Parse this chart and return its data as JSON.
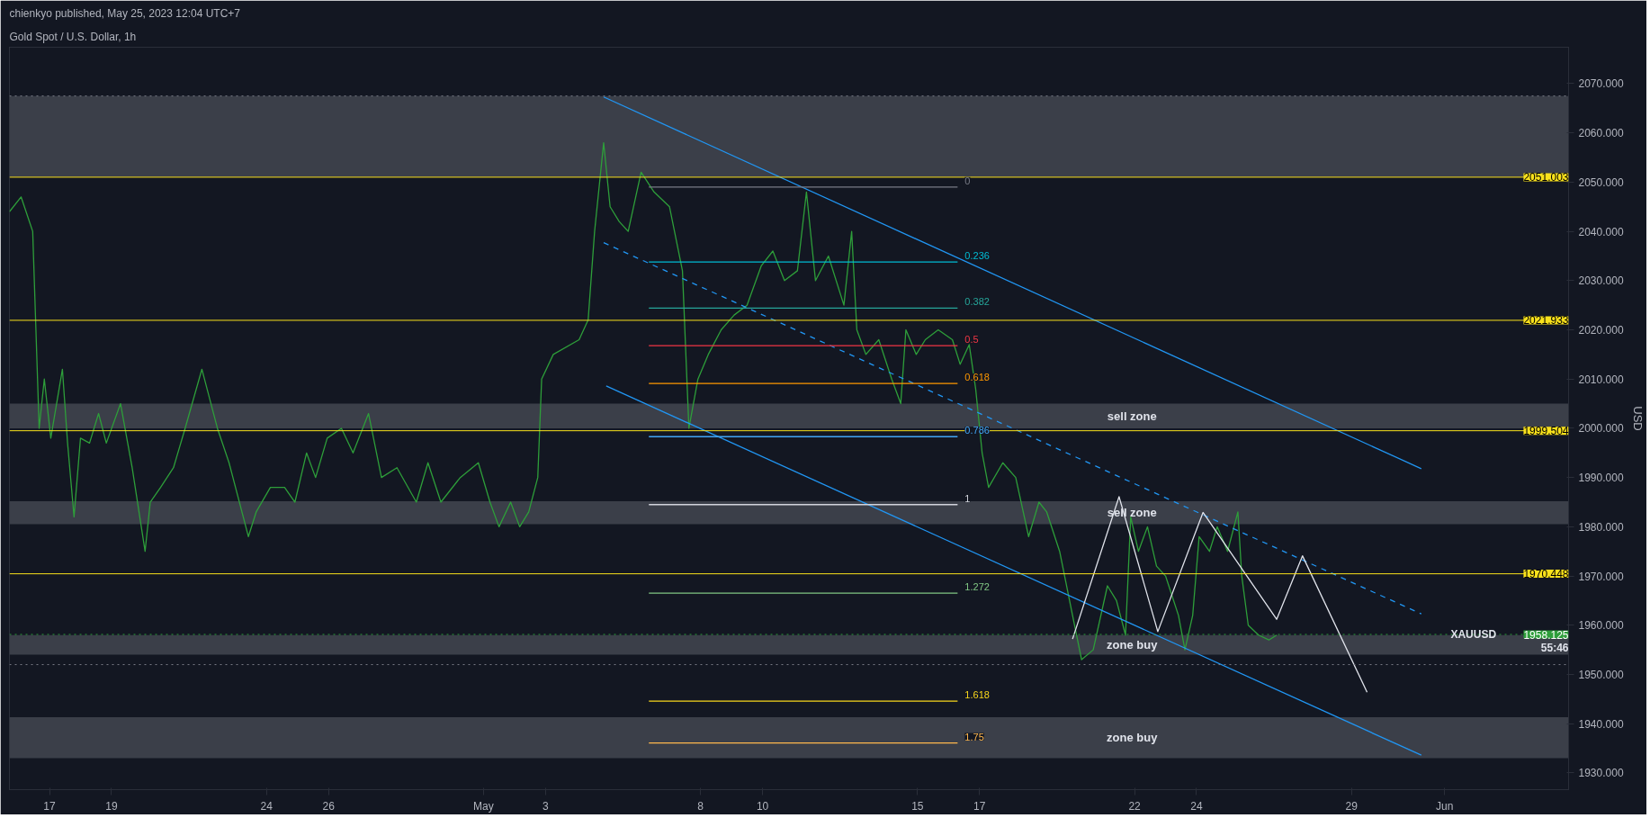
{
  "chart_data": {
    "type": "line",
    "title": "Gold Spot / U.S. Dollar, 1h",
    "subtitle": "chienkyo published, May 25, 2023 12:04 UTC+7",
    "ylabel": "USD",
    "xlim": [
      "2023-04-15T17:00",
      "2023-06-05T00:00"
    ],
    "ylim": [
      1926.6,
      2077.4
    ],
    "xticks": [
      {
        "value": "2023-04-17",
        "label": "17"
      },
      {
        "value": "2023-04-19",
        "label": "19"
      },
      {
        "value": "2023-04-24",
        "label": "24"
      },
      {
        "value": "2023-04-26",
        "label": "26"
      },
      {
        "value": "2023-05-01",
        "label": "May"
      },
      {
        "value": "2023-05-03",
        "label": "3"
      },
      {
        "value": "2023-05-08",
        "label": "8"
      },
      {
        "value": "2023-05-10",
        "label": "10"
      },
      {
        "value": "2023-05-15",
        "label": "15"
      },
      {
        "value": "2023-05-17",
        "label": "17"
      },
      {
        "value": "2023-05-22",
        "label": "22"
      },
      {
        "value": "2023-05-24",
        "label": "24"
      },
      {
        "value": "2023-05-29",
        "label": "29"
      },
      {
        "value": "2023-06-01",
        "label": "Jun"
      }
    ],
    "yticks": [
      {
        "value": 1930,
        "label": "1930.000"
      },
      {
        "value": 1940,
        "label": "1940.000"
      },
      {
        "value": 1950,
        "label": "1950.000"
      },
      {
        "value": 1960,
        "label": "1960.000"
      },
      {
        "value": 1970,
        "label": "1970.000"
      },
      {
        "value": 1980,
        "label": "1980.000"
      },
      {
        "value": 1990,
        "label": "1990.000"
      },
      {
        "value": 2000,
        "label": "2000.000"
      },
      {
        "value": 2010,
        "label": "2010.000"
      },
      {
        "value": 2020,
        "label": "2020.000"
      },
      {
        "value": 2030,
        "label": "2030.000"
      },
      {
        "value": 2040,
        "label": "2040.000"
      },
      {
        "value": 2050,
        "label": "2050.000"
      },
      {
        "value": 2060,
        "label": "2060.000"
      },
      {
        "value": 2070,
        "label": "2070.000"
      }
    ],
    "grid": false,
    "marker": "none",
    "line_style": "solid",
    "series": [
      {
        "color": "#2e9e3a",
        "x": [
          "2023-04-15T17:00",
          "2023-04-16T02:00",
          "2023-04-16T11:00",
          "2023-04-16T16:00",
          "2023-04-16T20:00",
          "2023-04-17T01:00",
          "2023-04-17T10:00",
          "2023-04-17T14:00",
          "2023-04-17T19:00",
          "2023-04-18T00:00",
          "2023-04-18T07:00",
          "2023-04-18T14:00",
          "2023-04-18T20:00",
          "2023-04-19T07:00",
          "2023-04-19T16:00",
          "2023-04-20T02:00",
          "2023-04-20T06:00",
          "2023-04-20T14:00",
          "2023-04-21T00:00",
          "2023-04-21T09:00",
          "2023-04-21T22:00",
          "2023-04-22T10:00",
          "2023-04-22T19:00",
          "2023-04-23T10:00",
          "2023-04-23T16:00",
          "2023-04-24T03:00",
          "2023-04-24T14:00",
          "2023-04-24T22:00",
          "2023-04-25T07:00",
          "2023-04-25T14:00",
          "2023-04-25T23:00",
          "2023-04-26T10:00",
          "2023-04-26T19:00",
          "2023-04-27T07:00",
          "2023-04-27T17:00",
          "2023-04-28T05:00",
          "2023-04-28T20:00",
          "2023-04-29T05:00",
          "2023-04-29T15:00",
          "2023-04-30T06:00",
          "2023-04-30T20:00",
          "2023-05-01T05:00",
          "2023-05-01T12:00",
          "2023-05-01T21:00",
          "2023-05-02T04:00",
          "2023-05-02T11:00",
          "2023-05-02T18:00",
          "2023-05-02T21:00",
          "2023-05-03T06:00",
          "2023-05-04T02:00",
          "2023-05-04T09:00",
          "2023-05-04T14:00",
          "2023-05-04T21:00",
          "2023-05-05T02:00",
          "2023-05-05T09:00",
          "2023-05-05T16:00",
          "2023-05-06T02:00",
          "2023-05-06T12:00",
          "2023-05-07T00:00",
          "2023-05-07T10:00",
          "2023-05-07T15:00",
          "2023-05-07T22:00",
          "2023-05-08T06:00",
          "2023-05-08T16:00",
          "2023-05-09T02:00",
          "2023-05-09T12:00",
          "2023-05-09T23:00",
          "2023-05-10T08:00",
          "2023-05-10T17:00",
          "2023-05-11T03:00",
          "2023-05-11T10:00",
          "2023-05-11T17:00",
          "2023-05-12T03:00",
          "2023-05-12T15:00",
          "2023-05-12T21:00",
          "2023-05-13T01:00",
          "2023-05-13T08:00",
          "2023-05-13T18:00",
          "2023-05-14T04:00",
          "2023-05-14T11:00",
          "2023-05-14T15:00",
          "2023-05-14T23:00",
          "2023-05-15T06:00",
          "2023-05-15T16:00",
          "2023-05-16T03:00",
          "2023-05-16T09:00",
          "2023-05-16T16:00",
          "2023-05-16T21:00",
          "2023-05-17T02:00",
          "2023-05-17T07:00",
          "2023-05-17T18:00",
          "2023-05-18T04:00",
          "2023-05-18T14:00",
          "2023-05-18T22:00",
          "2023-05-19T04:00",
          "2023-05-19T14:00",
          "2023-05-20T00:00",
          "2023-05-20T07:00",
          "2023-05-20T16:00",
          "2023-05-21T03:00",
          "2023-05-21T10:00",
          "2023-05-21T17:00",
          "2023-05-21T21:00",
          "2023-05-22T03:00",
          "2023-05-22T10:00",
          "2023-05-22T17:00",
          "2023-05-23T00:00",
          "2023-05-23T10:00",
          "2023-05-23T15:00",
          "2023-05-23T21:00",
          "2023-05-24T02:00",
          "2023-05-24T10:00",
          "2023-05-24T16:00",
          "2023-05-25T00:00",
          "2023-05-25T08:00",
          "2023-05-25T11:00",
          "2023-05-25T16:00",
          "2023-05-26T00:00",
          "2023-05-26T08:00",
          "2023-05-26T14:00"
        ],
        "values": [
          2044,
          2047,
          2040,
          2000,
          2010,
          1998,
          2012,
          1997,
          1982,
          1998,
          1997,
          2003,
          1997,
          2005,
          1992,
          1975,
          1985,
          1988,
          1992,
          2000,
          2012,
          2000,
          1993,
          1978,
          1983,
          1988,
          1988,
          1985,
          1995,
          1990,
          1998,
          2000,
          1995,
          2003,
          1990,
          1992,
          1985,
          1993,
          1985,
          1990,
          1993,
          1985,
          1980,
          1985,
          1980,
          1983,
          1990,
          2010,
          2015,
          2018,
          2022,
          2040,
          2058,
          2045,
          2042,
          2040,
          2052,
          2048,
          2045,
          2032,
          2000,
          2010,
          2015,
          2020,
          2023,
          2025,
          2033,
          2036,
          2030,
          2032,
          2048,
          2030,
          2035,
          2025,
          2040,
          2020,
          2015,
          2018,
          2010,
          2005,
          2020,
          2015,
          2018,
          2020,
          2018,
          2013,
          2017,
          2008,
          1995,
          1988,
          1993,
          1990,
          1978,
          1985,
          1983,
          1975,
          1962,
          1953,
          1955,
          1968,
          1965,
          1958,
          1982,
          1975,
          1980,
          1972,
          1970,
          1962,
          1955,
          1962,
          1978,
          1975,
          1980,
          1975,
          1983,
          1970,
          1960,
          1958,
          1957,
          1958
        ]
      },
      {
        "color": "#2196f3",
        "x": [
          "2023-05-04T21:00",
          "2023-05-31T06:00"
        ],
        "values": [
          2067.3,
          1991.8
        ]
      },
      {
        "color": "#2196f3",
        "x": [
          "2023-05-04T23:00",
          "2023-05-31T06:00"
        ],
        "values": [
          2008.6,
          1933.6
        ]
      },
      {
        "color": "#2196f3",
        "line_style": "dashed",
        "x": [
          "2023-05-04T21:00",
          "2023-05-31T06:00"
        ],
        "values": [
          2037.7,
          1962.3
        ]
      },
      {
        "color": "#e0e3eb",
        "x": [
          "2023-05-20T00:00",
          "2023-05-21T12:00",
          "2023-05-22T18:00",
          "2023-05-24T05:00",
          "2023-05-26T14:00",
          "2023-05-27T10:00",
          "2023-05-29T12:00"
        ],
        "values": [
          1957.2,
          1986.1,
          1958.7,
          1982.9,
          1961.2,
          1974.1,
          1946.4
        ]
      },
      {
        "name": "0",
        "color": "#787b86",
        "x": [
          "2023-05-06T08:00",
          "2023-05-16T07:00"
        ],
        "values": [
          2049,
          2049
        ]
      },
      {
        "name": "0.236",
        "color": "#00bcd4",
        "x": [
          "2023-05-06T08:00",
          "2023-05-16T07:00"
        ],
        "values": [
          2033.8,
          2033.8
        ]
      },
      {
        "name": "0.382",
        "color": "#26a69a",
        "x": [
          "2023-05-06T08:00",
          "2023-05-16T07:00"
        ],
        "values": [
          2024.4,
          2024.4
        ]
      },
      {
        "name": "0.5",
        "color": "#f23645",
        "x": [
          "2023-05-06T08:00",
          "2023-05-16T07:00"
        ],
        "values": [
          2016.8,
          2016.8
        ]
      },
      {
        "name": "0.618",
        "color": "#ff9800",
        "x": [
          "2023-05-06T08:00",
          "2023-05-16T07:00"
        ],
        "values": [
          2009.1,
          2009.1
        ]
      },
      {
        "name": "0.786",
        "color": "#42a5f5",
        "x": [
          "2023-05-06T08:00",
          "2023-05-16T07:00"
        ],
        "values": [
          1998.3,
          1998.3
        ]
      },
      {
        "name": "1",
        "color": "#d1d4dc",
        "x": [
          "2023-05-06T08:00",
          "2023-05-16T07:00"
        ],
        "values": [
          1984.5,
          1984.5
        ]
      },
      {
        "name": "1.272",
        "color": "#81c784",
        "x": [
          "2023-05-06T08:00",
          "2023-05-16T07:00"
        ],
        "values": [
          1966.5,
          1966.5
        ]
      },
      {
        "name": "1.618",
        "color": "#f9d71c",
        "x": [
          "2023-05-06T08:00",
          "2023-05-16T07:00"
        ],
        "values": [
          1944.6,
          1944.6
        ]
      },
      {
        "name": "1.75",
        "color": "#ffb74d",
        "x": [
          "2023-05-06T08:00",
          "2023-05-16T07:00"
        ],
        "values": [
          1936.1,
          1936.1
        ]
      }
    ],
    "ref_lines": [
      {
        "axis": "y",
        "value": 2051.003,
        "label": "2051.003",
        "color": "#f9e11c",
        "line_style": "solid"
      },
      {
        "axis": "y",
        "value": 2021.933,
        "label": "2021.933",
        "color": "#f9e11c",
        "line_style": "solid"
      },
      {
        "axis": "y",
        "value": 1999.504,
        "label": "1999.504",
        "color": "#f9e11c",
        "line_style": "solid"
      },
      {
        "axis": "y",
        "value": 1970.448,
        "label": "1970.448",
        "color": "#f9e11c",
        "line_style": "solid"
      },
      {
        "axis": "y",
        "value": 1958.125,
        "label": "1958.125",
        "color": "#2e9e3a",
        "line_style": "dotted"
      },
      {
        "axis": "y",
        "value": 1952,
        "label": null,
        "color": "#787b86",
        "line_style": "dotted"
      },
      {
        "axis": "y",
        "value": 2067.5,
        "label": null,
        "color": "#787b86",
        "line_style": "dotted"
      }
    ],
    "bands": [
      {
        "axis": "y",
        "from": 2051,
        "to": 2067.5,
        "color": "#4a4d57"
      },
      {
        "axis": "y",
        "from": 2000,
        "to": 2005,
        "color": "#4a4d57",
        "label": "sell zone"
      },
      {
        "axis": "y",
        "from": 1980.5,
        "to": 1985.2,
        "color": "#4a4d57",
        "label": "sell zone"
      },
      {
        "axis": "y",
        "from": 1954,
        "to": 1958,
        "color": "#4a4d57",
        "label": "zone buy"
      },
      {
        "axis": "y",
        "from": 1933,
        "to": 1941.3,
        "color": "#4a4d57",
        "label": "zone buy"
      }
    ],
    "annotations": [
      {
        "text": "XAUUSD",
        "x": "2023-06-02T16:00",
        "y": 1958.125
      },
      {
        "text": "55:46",
        "x": "2023-06-05T00:00",
        "y": 1955.3
      }
    ]
  }
}
